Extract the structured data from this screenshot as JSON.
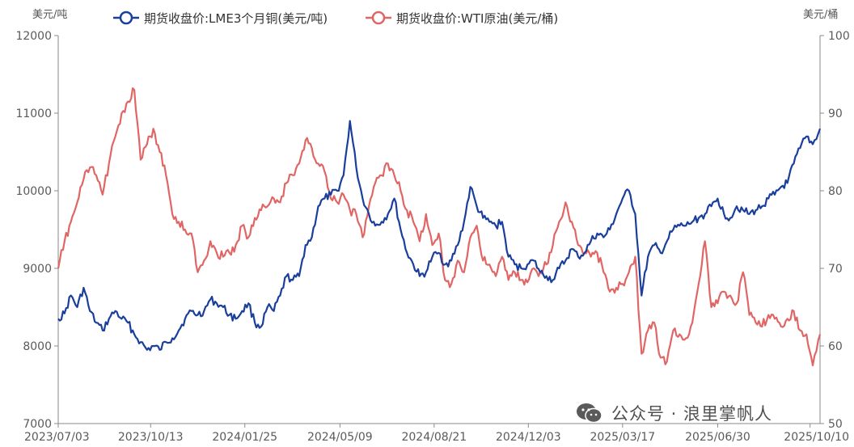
{
  "chart_data": {
    "type": "line",
    "y_left_unit": "美元/吨",
    "y_right_unit": "美元/桶",
    "y_left_range": [
      7000,
      12000
    ],
    "y_right_range": [
      50,
      100
    ],
    "y_left_ticks": [
      "7000",
      "8000",
      "9000",
      "10000",
      "11000",
      "12000"
    ],
    "y_right_ticks": [
      "50",
      "60",
      "70",
      "80",
      "90",
      "100"
    ],
    "x_tick_labels": [
      "2023/07/03",
      "2023/10/13",
      "2024/01/25",
      "2024/05/09",
      "2024/08/21",
      "2024/12/03",
      "2025/03/17",
      "2025/06/30",
      "2025/10/10"
    ],
    "x_range": [
      "2023/07/03",
      "2025/10/21"
    ],
    "grid": false,
    "legend_position": "top",
    "series": [
      {
        "name": "期货收盘价:LME3个月铜(美元/吨)",
        "axis": "left",
        "color": "#1a3e9c",
        "points": [
          [
            "2023/07/03",
            8350
          ],
          [
            "2023/07/10",
            8420
          ],
          [
            "2023/07/17",
            8650
          ],
          [
            "2023/07/24",
            8500
          ],
          [
            "2023/07/31",
            8750
          ],
          [
            "2023/08/07",
            8450
          ],
          [
            "2023/08/14",
            8300
          ],
          [
            "2023/08/21",
            8200
          ],
          [
            "2023/08/28",
            8350
          ],
          [
            "2023/09/04",
            8450
          ],
          [
            "2023/09/11",
            8350
          ],
          [
            "2023/09/18",
            8300
          ],
          [
            "2023/09/25",
            8150
          ],
          [
            "2023/10/02",
            8050
          ],
          [
            "2023/10/09",
            7950
          ],
          [
            "2023/10/16",
            8000
          ],
          [
            "2023/10/23",
            7950
          ],
          [
            "2023/10/30",
            8050
          ],
          [
            "2023/11/06",
            8100
          ],
          [
            "2023/11/13",
            8200
          ],
          [
            "2023/11/20",
            8350
          ],
          [
            "2023/11/27",
            8450
          ],
          [
            "2023/12/04",
            8400
          ],
          [
            "2023/12/11",
            8450
          ],
          [
            "2023/12/18",
            8600
          ],
          [
            "2023/12/25",
            8550
          ],
          [
            "2024/01/01",
            8500
          ],
          [
            "2024/01/08",
            8400
          ],
          [
            "2024/01/15",
            8350
          ],
          [
            "2024/01/22",
            8450
          ],
          [
            "2024/01/29",
            8550
          ],
          [
            "2024/02/05",
            8300
          ],
          [
            "2024/02/12",
            8250
          ],
          [
            "2024/02/19",
            8500
          ],
          [
            "2024/02/26",
            8450
          ],
          [
            "2024/03/04",
            8650
          ],
          [
            "2024/03/11",
            8900
          ],
          [
            "2024/03/18",
            8850
          ],
          [
            "2024/03/25",
            8900
          ],
          [
            "2024/04/01",
            9300
          ],
          [
            "2024/04/08",
            9400
          ],
          [
            "2024/04/15",
            9800
          ],
          [
            "2024/04/22",
            9900
          ],
          [
            "2024/04/29",
            9950
          ],
          [
            "2024/05/06",
            10000
          ],
          [
            "2024/05/13",
            10200
          ],
          [
            "2024/05/20",
            10900
          ],
          [
            "2024/05/27",
            10300
          ],
          [
            "2024/06/03",
            9900
          ],
          [
            "2024/06/10",
            9700
          ],
          [
            "2024/06/17",
            9550
          ],
          [
            "2024/06/24",
            9600
          ],
          [
            "2024/07/01",
            9700
          ],
          [
            "2024/07/08",
            9900
          ],
          [
            "2024/07/15",
            9500
          ],
          [
            "2024/07/22",
            9200
          ],
          [
            "2024/07/29",
            9050
          ],
          [
            "2024/08/05",
            8900
          ],
          [
            "2024/08/12",
            8950
          ],
          [
            "2024/08/19",
            9150
          ],
          [
            "2024/08/26",
            9200
          ],
          [
            "2024/09/02",
            9050
          ],
          [
            "2024/09/09",
            9100
          ],
          [
            "2024/09/16",
            9300
          ],
          [
            "2024/09/23",
            9600
          ],
          [
            "2024/09/30",
            10050
          ],
          [
            "2024/10/07",
            9800
          ],
          [
            "2024/10/14",
            9650
          ],
          [
            "2024/10/21",
            9600
          ],
          [
            "2024/10/28",
            9550
          ],
          [
            "2024/11/04",
            9600
          ],
          [
            "2024/11/11",
            9150
          ],
          [
            "2024/11/18",
            9050
          ],
          [
            "2024/11/25",
            9000
          ],
          [
            "2024/12/02",
            9050
          ],
          [
            "2024/12/09",
            9100
          ],
          [
            "2024/12/16",
            8950
          ],
          [
            "2024/12/23",
            8900
          ],
          [
            "2024/12/30",
            8850
          ],
          [
            "2025/01/06",
            9000
          ],
          [
            "2025/01/13",
            9100
          ],
          [
            "2025/01/20",
            9250
          ],
          [
            "2025/01/27",
            9150
          ],
          [
            "2025/02/03",
            9200
          ],
          [
            "2025/02/10",
            9350
          ],
          [
            "2025/02/17",
            9450
          ],
          [
            "2025/02/24",
            9400
          ],
          [
            "2025/03/03",
            9500
          ],
          [
            "2025/03/10",
            9700
          ],
          [
            "2025/03/17",
            9900
          ],
          [
            "2025/03/24",
            10000
          ],
          [
            "2025/03/31",
            9700
          ],
          [
            "2025/04/07",
            8650
          ],
          [
            "2025/04/14",
            9150
          ],
          [
            "2025/04/21",
            9300
          ],
          [
            "2025/04/28",
            9200
          ],
          [
            "2025/05/05",
            9350
          ],
          [
            "2025/05/12",
            9500
          ],
          [
            "2025/05/19",
            9550
          ],
          [
            "2025/05/26",
            9550
          ],
          [
            "2025/06/02",
            9600
          ],
          [
            "2025/06/09",
            9650
          ],
          [
            "2025/06/16",
            9700
          ],
          [
            "2025/06/23",
            9800
          ],
          [
            "2025/06/30",
            9900
          ],
          [
            "2025/07/07",
            9700
          ],
          [
            "2025/07/14",
            9650
          ],
          [
            "2025/07/21",
            9800
          ],
          [
            "2025/07/28",
            9750
          ],
          [
            "2025/08/04",
            9700
          ],
          [
            "2025/08/11",
            9750
          ],
          [
            "2025/08/18",
            9800
          ],
          [
            "2025/08/25",
            9900
          ],
          [
            "2025/09/01",
            9950
          ],
          [
            "2025/09/08",
            10050
          ],
          [
            "2025/09/15",
            10100
          ],
          [
            "2025/09/22",
            10350
          ],
          [
            "2025/09/29",
            10550
          ],
          [
            "2025/10/06",
            10700
          ],
          [
            "2025/10/13",
            10600
          ],
          [
            "2025/10/21",
            10800
          ]
        ]
      },
      {
        "name": "期货收盘价:WTI原油(美元/桶)",
        "axis": "right",
        "color": "#e06666",
        "points": [
          [
            "2023/07/03",
            70
          ],
          [
            "2023/07/10",
            73.5
          ],
          [
            "2023/07/17",
            76
          ],
          [
            "2023/07/24",
            78.5
          ],
          [
            "2023/07/31",
            81.5
          ],
          [
            "2023/08/07",
            83
          ],
          [
            "2023/08/14",
            82
          ],
          [
            "2023/08/21",
            79.5
          ],
          [
            "2023/08/28",
            83.5
          ],
          [
            "2023/09/04",
            87
          ],
          [
            "2023/09/11",
            90
          ],
          [
            "2023/09/18",
            91.5
          ],
          [
            "2023/09/25",
            93
          ],
          [
            "2023/10/02",
            84
          ],
          [
            "2023/10/09",
            86
          ],
          [
            "2023/10/16",
            88
          ],
          [
            "2023/10/23",
            85
          ],
          [
            "2023/10/30",
            82
          ],
          [
            "2023/11/06",
            77
          ],
          [
            "2023/11/13",
            76
          ],
          [
            "2023/11/20",
            75
          ],
          [
            "2023/11/27",
            74.5
          ],
          [
            "2023/12/04",
            69.5
          ],
          [
            "2023/12/11",
            71
          ],
          [
            "2023/12/18",
            73.5
          ],
          [
            "2023/12/25",
            72
          ],
          [
            "2024/01/01",
            71.5
          ],
          [
            "2024/01/08",
            72
          ],
          [
            "2024/01/15",
            73
          ],
          [
            "2024/01/22",
            75.5
          ],
          [
            "2024/01/29",
            74
          ],
          [
            "2024/02/05",
            76.5
          ],
          [
            "2024/02/12",
            77.5
          ],
          [
            "2024/02/19",
            78
          ],
          [
            "2024/02/26",
            79
          ],
          [
            "2024/03/04",
            78.5
          ],
          [
            "2024/03/11",
            81
          ],
          [
            "2024/03/18",
            82
          ],
          [
            "2024/03/25",
            83.5
          ],
          [
            "2024/04/01",
            86.5
          ],
          [
            "2024/04/08",
            85.5
          ],
          [
            "2024/04/15",
            83.5
          ],
          [
            "2024/04/22",
            82.5
          ],
          [
            "2024/04/29",
            79
          ],
          [
            "2024/05/06",
            78.5
          ],
          [
            "2024/05/13",
            79.5
          ],
          [
            "2024/05/20",
            77.5
          ],
          [
            "2024/05/27",
            77
          ],
          [
            "2024/06/03",
            74
          ],
          [
            "2024/06/10",
            78
          ],
          [
            "2024/06/17",
            81
          ],
          [
            "2024/06/24",
            82
          ],
          [
            "2024/07/01",
            83.5
          ],
          [
            "2024/07/08",
            82
          ],
          [
            "2024/07/15",
            80
          ],
          [
            "2024/07/22",
            77.5
          ],
          [
            "2024/07/29",
            76
          ],
          [
            "2024/08/05",
            73.5
          ],
          [
            "2024/08/12",
            77
          ],
          [
            "2024/08/19",
            73
          ],
          [
            "2024/08/26",
            74.5
          ],
          [
            "2024/09/02",
            68.5
          ],
          [
            "2024/09/09",
            68
          ],
          [
            "2024/09/16",
            71
          ],
          [
            "2024/09/23",
            69.5
          ],
          [
            "2024/09/30",
            74
          ],
          [
            "2024/10/07",
            75.5
          ],
          [
            "2024/10/14",
            71
          ],
          [
            "2024/10/21",
            70.5
          ],
          [
            "2024/10/28",
            69
          ],
          [
            "2024/11/04",
            71.5
          ],
          [
            "2024/11/11",
            68.5
          ],
          [
            "2024/11/18",
            69.5
          ],
          [
            "2024/11/25",
            68.5
          ],
          [
            "2024/12/02",
            68.2
          ],
          [
            "2024/12/09",
            70
          ],
          [
            "2024/12/16",
            69.5
          ],
          [
            "2024/12/23",
            70.5
          ],
          [
            "2024/12/30",
            73
          ],
          [
            "2025/01/06",
            76
          ],
          [
            "2025/01/13",
            78.5
          ],
          [
            "2025/01/20",
            76
          ],
          [
            "2025/01/27",
            73
          ],
          [
            "2025/02/03",
            72
          ],
          [
            "2025/02/10",
            71.5
          ],
          [
            "2025/02/17",
            72
          ],
          [
            "2025/02/24",
            69.5
          ],
          [
            "2025/03/03",
            67
          ],
          [
            "2025/03/10",
            67.5
          ],
          [
            "2025/03/17",
            68
          ],
          [
            "2025/03/24",
            69.5
          ],
          [
            "2025/03/31",
            71.5
          ],
          [
            "2025/04/07",
            59
          ],
          [
            "2025/04/14",
            62
          ],
          [
            "2025/04/21",
            63
          ],
          [
            "2025/04/28",
            58.5
          ],
          [
            "2025/05/05",
            58
          ],
          [
            "2025/05/12",
            62
          ],
          [
            "2025/05/19",
            61.5
          ],
          [
            "2025/05/26",
            61
          ],
          [
            "2025/06/02",
            63
          ],
          [
            "2025/06/09",
            68
          ],
          [
            "2025/06/16",
            73.5
          ],
          [
            "2025/06/23",
            65
          ],
          [
            "2025/06/30",
            65.5
          ],
          [
            "2025/07/07",
            67
          ],
          [
            "2025/07/14",
            66.5
          ],
          [
            "2025/07/21",
            65.5
          ],
          [
            "2025/07/28",
            69.5
          ],
          [
            "2025/08/04",
            64
          ],
          [
            "2025/08/11",
            63
          ],
          [
            "2025/08/18",
            62.5
          ],
          [
            "2025/08/25",
            64
          ],
          [
            "2025/09/01",
            63.5
          ],
          [
            "2025/09/08",
            62.5
          ],
          [
            "2025/09/15",
            63.5
          ],
          [
            "2025/09/22",
            64.5
          ],
          [
            "2025/09/29",
            62
          ],
          [
            "2025/10/06",
            61.5
          ],
          [
            "2025/10/13",
            57.5
          ],
          [
            "2025/10/21",
            61.5
          ]
        ]
      }
    ]
  },
  "watermark": {
    "icon": "wechat-icon",
    "text": "公众号 · 浪里掌帆人"
  }
}
